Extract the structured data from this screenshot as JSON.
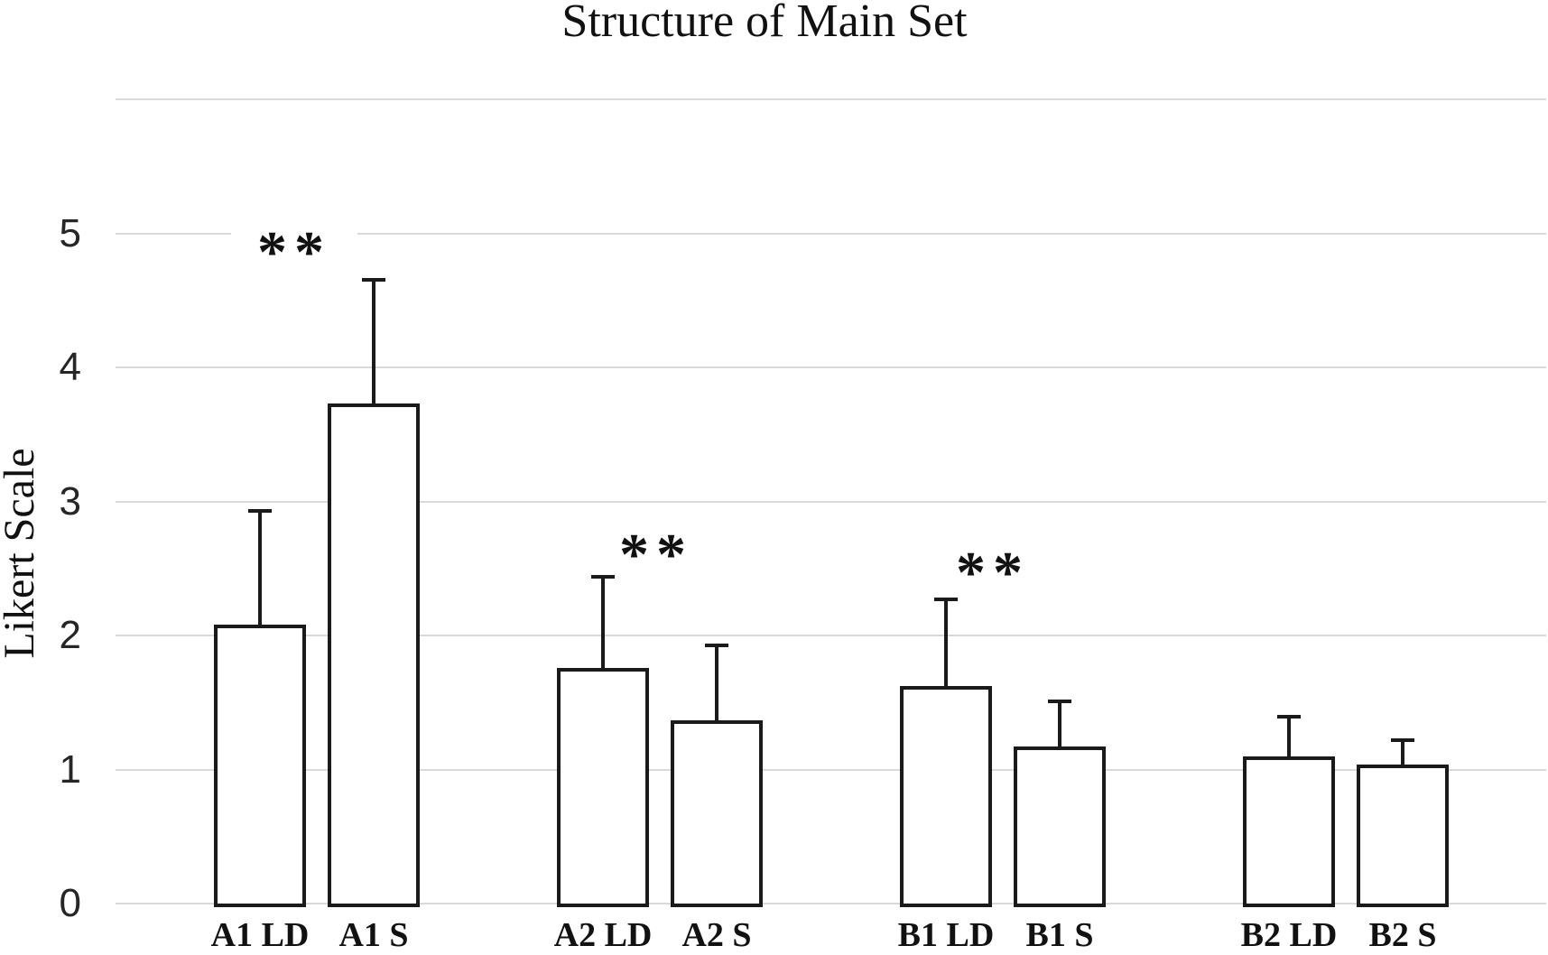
{
  "title": "Structure of Main Set",
  "y_axis": {
    "label": "Likert Scale",
    "tick_labels": [
      "0",
      "1",
      "2",
      "3",
      "4",
      "5"
    ],
    "tick_values": [
      0,
      1,
      2,
      3,
      4,
      5
    ]
  },
  "chart_data": {
    "type": "bar",
    "title": "Structure of Main Set",
    "xlabel": "",
    "ylabel": "Likert Scale",
    "ylim": [
      0,
      6
    ],
    "grid": true,
    "gridline_values": [
      0,
      1,
      2,
      3,
      4,
      5,
      6
    ],
    "categories": [
      "A1 LD",
      "A1 S",
      "A2 LD",
      "A2 S",
      "B1 LD",
      "B1 S",
      "B2 LD",
      "B2 S"
    ],
    "values": [
      2.08,
      3.73,
      1.76,
      1.37,
      1.62,
      1.17,
      1.1,
      1.04
    ],
    "error_up": [
      0.86,
      0.94,
      0.69,
      0.57,
      0.66,
      0.35,
      0.31,
      0.19
    ],
    "significance_markers": [
      {
        "pair": [
          0,
          1
        ],
        "label": "**",
        "y": 4.92
      },
      {
        "pair": [
          2,
          3
        ],
        "label": "**",
        "y": 2.67
      },
      {
        "pair": [
          4,
          5
        ],
        "label": "**",
        "y": 2.53
      }
    ],
    "colors": {
      "bar_fill": "#ffffff",
      "bar_border": "#1a1a1a",
      "gridline": "#d9d9d9",
      "text": "#111111"
    },
    "legend": null
  }
}
